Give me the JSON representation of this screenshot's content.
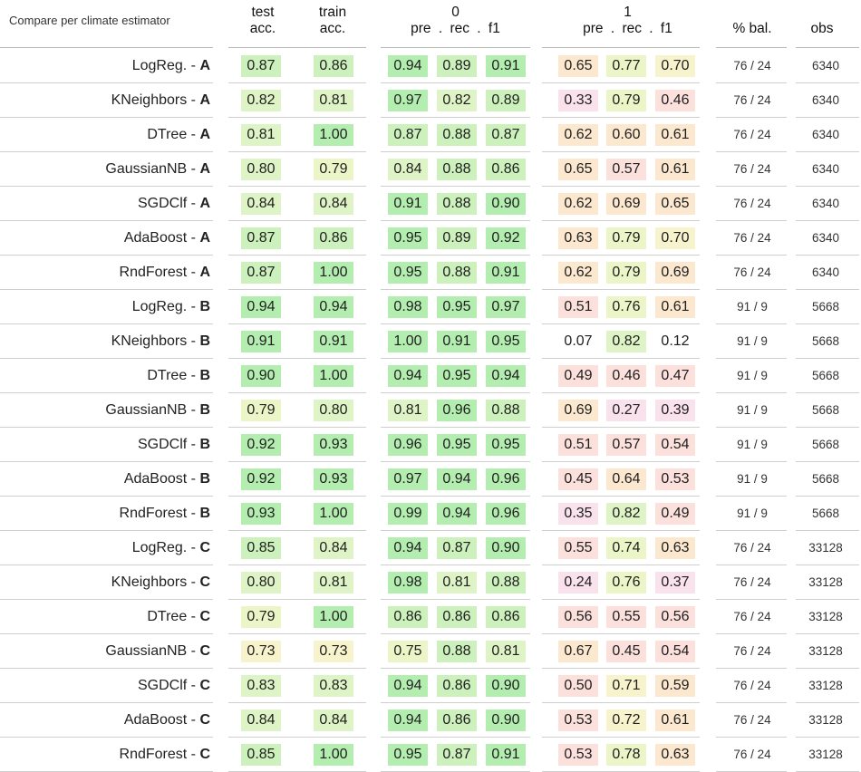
{
  "caption": "Compare per climate estimator",
  "headers": {
    "test": [
      "test",
      "acc."
    ],
    "train": [
      "train",
      "acc."
    ],
    "class0": "0",
    "class0_sub": "pre . rec . f1",
    "class1": "1",
    "class1_sub": "pre . rec . f1",
    "bal": "% bal.",
    "obs": "obs"
  },
  "colors": {
    "green_strong": "#b3eeb0",
    "green_mid": "#ccf1bc",
    "green_light": "#dff4c6",
    "yellow_green": "#ecf5c8",
    "yellow": "#f7f3cc",
    "peach": "#fbe8cf",
    "pink": "#fbe0dc",
    "pink_purple": "#fae2ec",
    "none": "#ffffff"
  },
  "rows": [
    {
      "model": "LogReg.",
      "group": "A",
      "test": "0.87",
      "train": "0.86",
      "c0": [
        "0.94",
        "0.89",
        "0.91"
      ],
      "c1": [
        "0.65",
        "0.77",
        "0.70"
      ],
      "bal": "76 / 24",
      "obs": "6340"
    },
    {
      "model": "KNeighbors",
      "group": "A",
      "test": "0.82",
      "train": "0.81",
      "c0": [
        "0.97",
        "0.82",
        "0.89"
      ],
      "c1": [
        "0.33",
        "0.79",
        "0.46"
      ],
      "bal": "76 / 24",
      "obs": "6340"
    },
    {
      "model": "DTree",
      "group": "A",
      "test": "0.81",
      "train": "1.00",
      "c0": [
        "0.87",
        "0.88",
        "0.87"
      ],
      "c1": [
        "0.62",
        "0.60",
        "0.61"
      ],
      "bal": "76 / 24",
      "obs": "6340"
    },
    {
      "model": "GaussianNB",
      "group": "A",
      "test": "0.80",
      "train": "0.79",
      "c0": [
        "0.84",
        "0.88",
        "0.86"
      ],
      "c1": [
        "0.65",
        "0.57",
        "0.61"
      ],
      "bal": "76 / 24",
      "obs": "6340"
    },
    {
      "model": "SGDClf",
      "group": "A",
      "test": "0.84",
      "train": "0.84",
      "c0": [
        "0.91",
        "0.88",
        "0.90"
      ],
      "c1": [
        "0.62",
        "0.69",
        "0.65"
      ],
      "bal": "76 / 24",
      "obs": "6340"
    },
    {
      "model": "AdaBoost",
      "group": "A",
      "test": "0.87",
      "train": "0.86",
      "c0": [
        "0.95",
        "0.89",
        "0.92"
      ],
      "c1": [
        "0.63",
        "0.79",
        "0.70"
      ],
      "bal": "76 / 24",
      "obs": "6340"
    },
    {
      "model": "RndForest",
      "group": "A",
      "test": "0.87",
      "train": "1.00",
      "c0": [
        "0.95",
        "0.88",
        "0.91"
      ],
      "c1": [
        "0.62",
        "0.79",
        "0.69"
      ],
      "bal": "76 / 24",
      "obs": "6340"
    },
    {
      "model": "LogReg.",
      "group": "B",
      "test": "0.94",
      "train": "0.94",
      "c0": [
        "0.98",
        "0.95",
        "0.97"
      ],
      "c1": [
        "0.51",
        "0.76",
        "0.61"
      ],
      "bal": "91 / 9",
      "obs": "5668"
    },
    {
      "model": "KNeighbors",
      "group": "B",
      "test": "0.91",
      "train": "0.91",
      "c0": [
        "1.00",
        "0.91",
        "0.95"
      ],
      "c1": [
        "0.07",
        "0.82",
        "0.12"
      ],
      "bal": "91 / 9",
      "obs": "5668"
    },
    {
      "model": "DTree",
      "group": "B",
      "test": "0.90",
      "train": "1.00",
      "c0": [
        "0.94",
        "0.95",
        "0.94"
      ],
      "c1": [
        "0.49",
        "0.46",
        "0.47"
      ],
      "bal": "91 / 9",
      "obs": "5668"
    },
    {
      "model": "GaussianNB",
      "group": "B",
      "test": "0.79",
      "train": "0.80",
      "c0": [
        "0.81",
        "0.96",
        "0.88"
      ],
      "c1": [
        "0.69",
        "0.27",
        "0.39"
      ],
      "bal": "91 / 9",
      "obs": "5668"
    },
    {
      "model": "SGDClf",
      "group": "B",
      "test": "0.92",
      "train": "0.93",
      "c0": [
        "0.96",
        "0.95",
        "0.95"
      ],
      "c1": [
        "0.51",
        "0.57",
        "0.54"
      ],
      "bal": "91 / 9",
      "obs": "5668"
    },
    {
      "model": "AdaBoost",
      "group": "B",
      "test": "0.92",
      "train": "0.93",
      "c0": [
        "0.97",
        "0.94",
        "0.96"
      ],
      "c1": [
        "0.45",
        "0.64",
        "0.53"
      ],
      "bal": "91 / 9",
      "obs": "5668"
    },
    {
      "model": "RndForest",
      "group": "B",
      "test": "0.93",
      "train": "1.00",
      "c0": [
        "0.99",
        "0.94",
        "0.96"
      ],
      "c1": [
        "0.35",
        "0.82",
        "0.49"
      ],
      "bal": "91 / 9",
      "obs": "5668"
    },
    {
      "model": "LogReg.",
      "group": "C",
      "test": "0.85",
      "train": "0.84",
      "c0": [
        "0.94",
        "0.87",
        "0.90"
      ],
      "c1": [
        "0.55",
        "0.74",
        "0.63"
      ],
      "bal": "76 / 24",
      "obs": "33128"
    },
    {
      "model": "KNeighbors",
      "group": "C",
      "test": "0.80",
      "train": "0.81",
      "c0": [
        "0.98",
        "0.81",
        "0.88"
      ],
      "c1": [
        "0.24",
        "0.76",
        "0.37"
      ],
      "bal": "76 / 24",
      "obs": "33128"
    },
    {
      "model": "DTree",
      "group": "C",
      "test": "0.79",
      "train": "1.00",
      "c0": [
        "0.86",
        "0.86",
        "0.86"
      ],
      "c1": [
        "0.56",
        "0.55",
        "0.56"
      ],
      "bal": "76 / 24",
      "obs": "33128"
    },
    {
      "model": "GaussianNB",
      "group": "C",
      "test": "0.73",
      "train": "0.73",
      "c0": [
        "0.75",
        "0.88",
        "0.81"
      ],
      "c1": [
        "0.67",
        "0.45",
        "0.54"
      ],
      "bal": "76 / 24",
      "obs": "33128"
    },
    {
      "model": "SGDClf",
      "group": "C",
      "test": "0.83",
      "train": "0.83",
      "c0": [
        "0.94",
        "0.86",
        "0.90"
      ],
      "c1": [
        "0.50",
        "0.71",
        "0.59"
      ],
      "bal": "76 / 24",
      "obs": "33128"
    },
    {
      "model": "AdaBoost",
      "group": "C",
      "test": "0.84",
      "train": "0.84",
      "c0": [
        "0.94",
        "0.86",
        "0.90"
      ],
      "c1": [
        "0.53",
        "0.72",
        "0.61"
      ],
      "bal": "76 / 24",
      "obs": "33128"
    },
    {
      "model": "RndForest",
      "group": "C",
      "test": "0.85",
      "train": "1.00",
      "c0": [
        "0.95",
        "0.87",
        "0.91"
      ],
      "c1": [
        "0.53",
        "0.78",
        "0.63"
      ],
      "bal": "76 / 24",
      "obs": "33128"
    }
  ]
}
